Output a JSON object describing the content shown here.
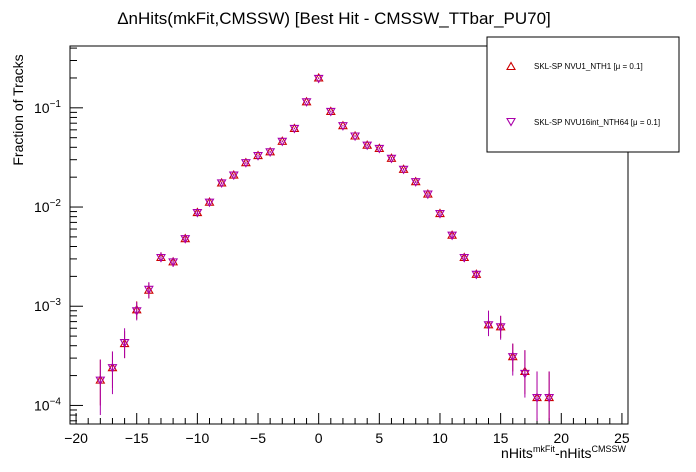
{
  "chart_data": {
    "type": "scatter",
    "title": "ΔnHits(mkFit,CMSSW) [Best Hit - CMSSW_TTbar_PU70]",
    "ylabel": "Fraction of Tracks",
    "xlabel": {
      "base1": "nHits",
      "sup1": "mkFit",
      "base2": "-nHits",
      "sup2": "CMSSW"
    },
    "xlim": [
      -20.5,
      25.5
    ],
    "ylim": [
      6.5e-05,
      0.42
    ],
    "yscale": "log",
    "x_ticks": [
      "−20",
      "−15",
      "−10",
      "−5",
      "0",
      "5",
      "10",
      "15",
      "20",
      "25"
    ],
    "y_ticks": [
      {
        "base": "10",
        "exp": "−4"
      },
      {
        "base": "10",
        "exp": "−3"
      },
      {
        "base": "10",
        "exp": "−2"
      },
      {
        "base": "10",
        "exp": "−1"
      }
    ],
    "legend_position": "top-right",
    "series": [
      {
        "name": "SKL-SP NVU1_NTH1 [μ =  0.1]",
        "marker": "triangle-up",
        "color": "#cc0000",
        "points": [
          [
            -18,
            0.00018,
            0.0001,
            0.00029
          ],
          [
            -17,
            0.00024,
            0.00015,
            0.00035
          ],
          [
            -16,
            0.00042,
            0.0003,
            0.00056
          ],
          [
            -15,
            0.00092,
            0.00074,
            0.00112
          ],
          [
            -14,
            0.00145,
            0.0012,
            0.00172
          ],
          [
            -13,
            0.0031,
            0.0028,
            0.0035
          ],
          [
            -12,
            0.0028,
            0.0025,
            0.0031
          ],
          [
            -11,
            0.0048,
            0.0045,
            0.0051
          ],
          [
            -10,
            0.0088,
            0.0084,
            0.0092
          ],
          [
            -9,
            0.0112,
            0.0107,
            0.0117
          ],
          [
            -8,
            0.0175,
            0.017,
            0.018
          ],
          [
            -7,
            0.021,
            0.0204,
            0.0216
          ],
          [
            -6,
            0.028,
            0.0273,
            0.0287
          ],
          [
            -5,
            0.033,
            0.0322,
            0.0338
          ],
          [
            -4,
            0.036,
            0.0352,
            0.0368
          ],
          [
            -3,
            0.046,
            0.0451,
            0.0469
          ],
          [
            -2,
            0.062,
            0.061,
            0.063
          ],
          [
            -1,
            0.115,
            0.113,
            0.117
          ],
          [
            0,
            0.2,
            0.197,
            0.203
          ],
          [
            1,
            0.092,
            0.09,
            0.094
          ],
          [
            2,
            0.066,
            0.065,
            0.067
          ],
          [
            3,
            0.052,
            0.051,
            0.053
          ],
          [
            4,
            0.042,
            0.041,
            0.043
          ],
          [
            5,
            0.039,
            0.038,
            0.04
          ],
          [
            6,
            0.031,
            0.03,
            0.032
          ],
          [
            7,
            0.024,
            0.0234,
            0.0246
          ],
          [
            8,
            0.018,
            0.0175,
            0.0185
          ],
          [
            9,
            0.0135,
            0.013,
            0.014
          ],
          [
            10,
            0.0086,
            0.0082,
            0.009
          ],
          [
            11,
            0.0052,
            0.0049,
            0.0055
          ],
          [
            12,
            0.0031,
            0.0028,
            0.0034
          ],
          [
            13,
            0.0021,
            0.0019,
            0.0023
          ],
          [
            14,
            0.00065,
            0.00052,
            0.0009
          ],
          [
            15,
            0.00062,
            0.00048,
            0.0008
          ],
          [
            16,
            0.00031,
            0.00022,
            0.00042
          ],
          [
            17,
            0.00022,
            0.00013,
            0.00036
          ],
          [
            18,
            0.00012,
            7e-05,
            0.00022
          ],
          [
            19,
            0.00012,
            7e-05,
            0.00022
          ]
        ]
      },
      {
        "name": "SKL-SP NVU16int_NTH64 [μ =  0.1]",
        "marker": "triangle-down",
        "color": "#aa00aa",
        "points": [
          [
            -18,
            0.00018,
            8e-05,
            0.00029
          ],
          [
            -17,
            0.00024,
            0.00013,
            0.00035
          ],
          [
            -16,
            0.00043,
            0.0003,
            0.0006
          ],
          [
            -15,
            0.0009,
            0.00072,
            0.0011
          ],
          [
            -14,
            0.00148,
            0.0012,
            0.00175
          ],
          [
            -13,
            0.0031,
            0.0028,
            0.0035
          ],
          [
            -12,
            0.0028,
            0.0025,
            0.0031
          ],
          [
            -11,
            0.0048,
            0.0045,
            0.0051
          ],
          [
            -10,
            0.0088,
            0.0084,
            0.0092
          ],
          [
            -9,
            0.0112,
            0.0107,
            0.0117
          ],
          [
            -8,
            0.0175,
            0.017,
            0.018
          ],
          [
            -7,
            0.021,
            0.0204,
            0.0216
          ],
          [
            -6,
            0.028,
            0.0273,
            0.0287
          ],
          [
            -5,
            0.033,
            0.0322,
            0.0338
          ],
          [
            -4,
            0.036,
            0.0352,
            0.0368
          ],
          [
            -3,
            0.046,
            0.0451,
            0.0469
          ],
          [
            -2,
            0.062,
            0.061,
            0.063
          ],
          [
            -1,
            0.115,
            0.113,
            0.117
          ],
          [
            0,
            0.198,
            0.195,
            0.201
          ],
          [
            1,
            0.092,
            0.09,
            0.094
          ],
          [
            2,
            0.066,
            0.065,
            0.067
          ],
          [
            3,
            0.052,
            0.051,
            0.053
          ],
          [
            4,
            0.042,
            0.041,
            0.043
          ],
          [
            5,
            0.039,
            0.038,
            0.04
          ],
          [
            6,
            0.031,
            0.03,
            0.032
          ],
          [
            7,
            0.024,
            0.0234,
            0.0246
          ],
          [
            8,
            0.018,
            0.0175,
            0.0185
          ],
          [
            9,
            0.0135,
            0.013,
            0.014
          ],
          [
            10,
            0.0086,
            0.0082,
            0.009
          ],
          [
            11,
            0.0052,
            0.0049,
            0.0055
          ],
          [
            12,
            0.0031,
            0.0028,
            0.0034
          ],
          [
            13,
            0.0021,
            0.0019,
            0.0023
          ],
          [
            14,
            0.00065,
            0.0005,
            0.0009
          ],
          [
            15,
            0.00062,
            0.00046,
            0.0008
          ],
          [
            16,
            0.00031,
            0.0002,
            0.00042
          ],
          [
            17,
            0.00021,
            0.00012,
            0.00036
          ],
          [
            18,
            0.00012,
            7e-05,
            0.00022
          ],
          [
            19,
            0.00012,
            7e-05,
            0.00022
          ]
        ]
      }
    ]
  }
}
